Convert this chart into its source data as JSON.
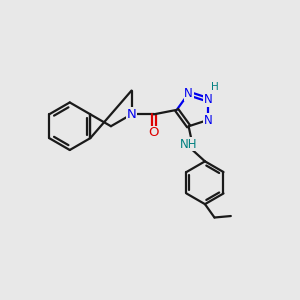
{
  "bg_color": "#e8e8e8",
  "bond_color": "#1a1a1a",
  "N_color": "#0000ee",
  "O_color": "#dd0000",
  "NH_color": "#008080",
  "line_width": 1.6,
  "font_size": 8.5,
  "fig_size": [
    3.0,
    3.0
  ],
  "xlim": [
    0,
    10
  ],
  "ylim": [
    0,
    10
  ]
}
